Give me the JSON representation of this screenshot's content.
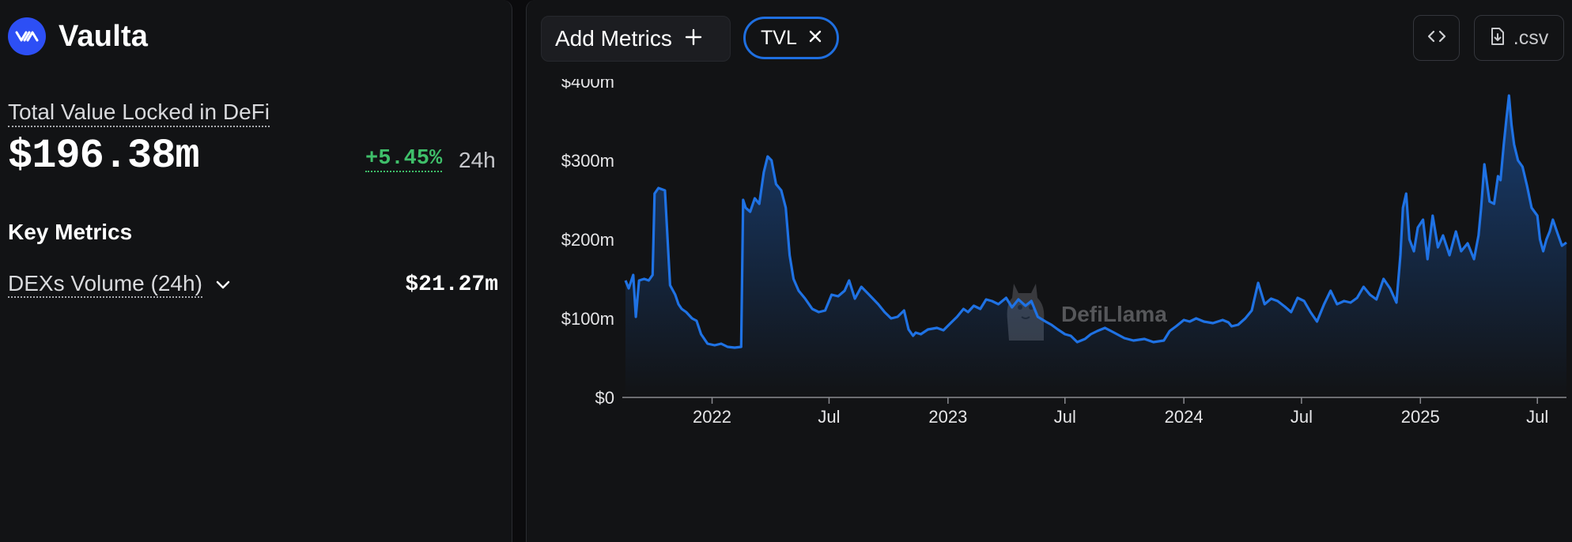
{
  "protocol": {
    "name": "Vaulta",
    "logo_icon": "vaulta-logo-icon"
  },
  "tvl": {
    "label": "Total Value Locked in DeFi",
    "value": "$196.38m",
    "change": "+5.45%",
    "period": "24h"
  },
  "key_metrics": {
    "heading": "Key Metrics",
    "items": [
      {
        "label": "DEXs Volume (24h)",
        "value": "$21.27m"
      }
    ]
  },
  "toolbar": {
    "add_metrics_label": "Add Metrics",
    "chip_label": "TVL",
    "csv_label": ".csv",
    "embed_icon": "code-icon",
    "csv_icon": "file-download-icon"
  },
  "watermark": {
    "text": "DefiLlama"
  },
  "colors": {
    "line": "#1f72e4",
    "positive": "#3fbf6a",
    "brand": "#2d4ff5"
  },
  "chart_data": {
    "type": "area",
    "title": "",
    "xlabel": "",
    "ylabel": "",
    "y_ticks": [
      "$0",
      "$100m",
      "$200m",
      "$300m",
      "$400m"
    ],
    "ylim": [
      0,
      400
    ],
    "x_ticks": [
      "2022",
      "Jul",
      "2023",
      "Jul",
      "2024",
      "Jul",
      "2025",
      "Jul"
    ],
    "x_tick_dates": [
      "2022-01-01",
      "2022-07-01",
      "2023-01-01",
      "2023-07-01",
      "2024-01-01",
      "2024-07-01",
      "2025-01-01",
      "2025-07-01"
    ],
    "xlim": [
      "2021-08-20",
      "2025-08-15"
    ],
    "unit": "$m",
    "series": [
      {
        "x": [
          "2021-08-20",
          "2021-08-25",
          "2021-09-01",
          "2021-09-05",
          "2021-09-10",
          "2021-09-18",
          "2021-09-25",
          "2021-10-01",
          "2021-10-04",
          "2021-10-10",
          "2021-10-20",
          "2021-10-28",
          "2021-11-05",
          "2021-11-10",
          "2021-11-15",
          "2021-11-22",
          "2021-12-01",
          "2021-12-08",
          "2021-12-15",
          "2021-12-25",
          "2022-01-05",
          "2022-01-15",
          "2022-01-25",
          "2022-02-05",
          "2022-02-15",
          "2022-02-18",
          "2022-02-22",
          "2022-03-01",
          "2022-03-08",
          "2022-03-15",
          "2022-03-22",
          "2022-03-28",
          "2022-04-03",
          "2022-04-10",
          "2022-04-18",
          "2022-04-25",
          "2022-05-01",
          "2022-05-07",
          "2022-05-15",
          "2022-05-25",
          "2022-06-05",
          "2022-06-15",
          "2022-06-25",
          "2022-07-05",
          "2022-07-15",
          "2022-07-25",
          "2022-08-01",
          "2022-08-10",
          "2022-08-20",
          "2022-09-01",
          "2022-09-15",
          "2022-09-25",
          "2022-10-05",
          "2022-10-15",
          "2022-10-25",
          "2022-11-01",
          "2022-11-08",
          "2022-11-12",
          "2022-11-20",
          "2022-12-01",
          "2022-12-15",
          "2022-12-25",
          "2023-01-05",
          "2023-01-15",
          "2023-01-25",
          "2023-02-01",
          "2023-02-10",
          "2023-02-20",
          "2023-03-01",
          "2023-03-10",
          "2023-03-20",
          "2023-04-01",
          "2023-04-10",
          "2023-04-20",
          "2023-05-01",
          "2023-05-10",
          "2023-05-20",
          "2023-06-01",
          "2023-06-10",
          "2023-06-20",
          "2023-07-01",
          "2023-07-10",
          "2023-07-20",
          "2023-08-01",
          "2023-08-10",
          "2023-08-20",
          "2023-09-01",
          "2023-09-15",
          "2023-10-01",
          "2023-10-15",
          "2023-11-01",
          "2023-11-15",
          "2023-12-01",
          "2023-12-10",
          "2023-12-20",
          "2024-01-01",
          "2024-01-10",
          "2024-01-20",
          "2024-02-01",
          "2024-02-15",
          "2024-03-01",
          "2024-03-10",
          "2024-03-15",
          "2024-03-25",
          "2024-04-05",
          "2024-04-15",
          "2024-04-25",
          "2024-05-05",
          "2024-05-15",
          "2024-05-25",
          "2024-06-05",
          "2024-06-15",
          "2024-06-25",
          "2024-07-05",
          "2024-07-15",
          "2024-07-25",
          "2024-08-05",
          "2024-08-15",
          "2024-08-25",
          "2024-09-05",
          "2024-09-15",
          "2024-09-25",
          "2024-10-05",
          "2024-10-15",
          "2024-10-25",
          "2024-11-05",
          "2024-11-15",
          "2024-11-25",
          "2024-12-01",
          "2024-12-05",
          "2024-12-10",
          "2024-12-15",
          "2024-12-22",
          "2024-12-28",
          "2025-01-05",
          "2025-01-12",
          "2025-01-20",
          "2025-01-28",
          "2025-02-05",
          "2025-02-15",
          "2025-02-25",
          "2025-03-05",
          "2025-03-15",
          "2025-03-25",
          "2025-04-01",
          "2025-04-05",
          "2025-04-10",
          "2025-04-18",
          "2025-04-25",
          "2025-05-01",
          "2025-05-05",
          "2025-05-10",
          "2025-05-14",
          "2025-05-18",
          "2025-05-22",
          "2025-05-26",
          "2025-06-01",
          "2025-06-08",
          "2025-06-15",
          "2025-06-22",
          "2025-07-01",
          "2025-07-05",
          "2025-07-10",
          "2025-07-15",
          "2025-07-20",
          "2025-07-25",
          "2025-08-01",
          "2025-08-08",
          "2025-08-15"
        ],
        "values": [
          148,
          138,
          155,
          102,
          148,
          150,
          148,
          155,
          258,
          265,
          262,
          142,
          130,
          118,
          112,
          108,
          100,
          97,
          80,
          68,
          66,
          68,
          64,
          63,
          64,
          250,
          240,
          235,
          252,
          245,
          285,
          305,
          300,
          270,
          262,
          240,
          180,
          150,
          135,
          125,
          112,
          108,
          110,
          130,
          128,
          135,
          148,
          125,
          140,
          130,
          118,
          108,
          100,
          102,
          110,
          86,
          78,
          82,
          80,
          86,
          88,
          85,
          94,
          102,
          112,
          108,
          116,
          112,
          124,
          122,
          118,
          126,
          114,
          124,
          116,
          122,
          102,
          96,
          92,
          86,
          80,
          78,
          70,
          74,
          80,
          84,
          88,
          82,
          75,
          72,
          74,
          70,
          72,
          84,
          90,
          98,
          96,
          100,
          96,
          94,
          98,
          95,
          90,
          92,
          100,
          110,
          145,
          118,
          125,
          122,
          115,
          108,
          126,
          122,
          108,
          96,
          118,
          135,
          118,
          122,
          120,
          126,
          140,
          130,
          124,
          150,
          138,
          120,
          180,
          240,
          258,
          200,
          185,
          215,
          225,
          175,
          230,
          190,
          205,
          180,
          210,
          185,
          195,
          175,
          205,
          240,
          295,
          248,
          245,
          280,
          275,
          320,
          352,
          382,
          345,
          320,
          300,
          292,
          268,
          240,
          230,
          200,
          185,
          200,
          210,
          225,
          208,
          192,
          196
        ]
      }
    ]
  }
}
